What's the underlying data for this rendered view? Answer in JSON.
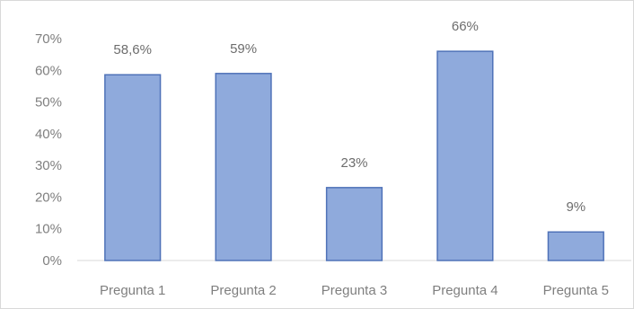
{
  "chart_data": {
    "type": "bar",
    "categories": [
      "Pregunta 1",
      "Pregunta 2",
      "Pregunta 3",
      "Pregunta 4",
      "Pregunta 5"
    ],
    "values": [
      58.6,
      59,
      23,
      66,
      9
    ],
    "data_labels": [
      "58,6%",
      "59%",
      "23%",
      "66%",
      "9%"
    ],
    "y_ticks": [
      "0%",
      "10%",
      "20%",
      "30%",
      "40%",
      "50%",
      "60%",
      "70%"
    ],
    "ylim": [
      0,
      70
    ],
    "grid": false,
    "legend": "none",
    "title": "",
    "xlabel": "",
    "ylabel": "",
    "colors": {
      "bar_fill": "#8faadc",
      "bar_stroke": "#4f72b8",
      "text": "#7f7f7f"
    }
  }
}
